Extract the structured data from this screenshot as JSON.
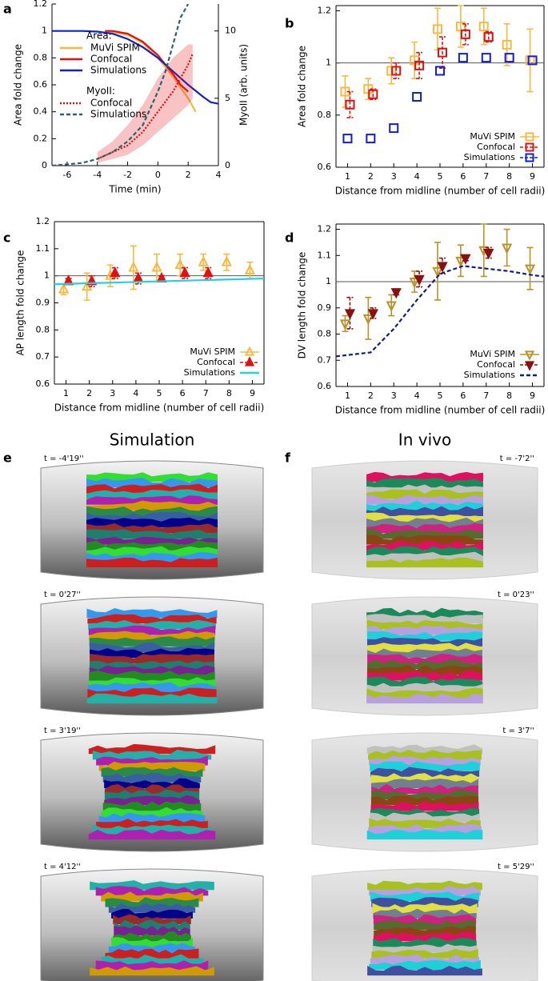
{
  "chart_data": [
    {
      "type": "line",
      "panel": "a",
      "xlabel": "Time (min)",
      "ylabel": "Area fold change",
      "y2label": "MyoII (arb. units)",
      "xlim": [
        -7,
        4
      ],
      "xticks": [
        -6,
        -4,
        -2,
        0,
        2,
        4
      ],
      "ylim": [
        0,
        1.2
      ],
      "yticks": [
        0,
        0.2,
        0.4,
        0.6,
        0.8,
        1,
        1.2
      ],
      "y2lim": [
        0,
        12
      ],
      "y2ticks": [
        0,
        5,
        10
      ],
      "legend": "top-left",
      "legend_groups": [
        "Area:",
        "MyoII:"
      ],
      "series": [
        {
          "name": "MuVi SPIM",
          "group": 0,
          "color": "#f5b942",
          "dash": "solid",
          "x": [
            -3.5,
            -3,
            -2,
            -1,
            0,
            1,
            2,
            2.5
          ],
          "values": [
            0.99,
            0.99,
            0.97,
            0.91,
            0.8,
            0.66,
            0.5,
            0.4
          ]
        },
        {
          "name": "Confocal",
          "group": 0,
          "color": "#e01010",
          "dash": "solid",
          "x": [
            -3.5,
            -3,
            -2,
            -1,
            0,
            1,
            1.5,
            2
          ],
          "values": [
            1,
            1,
            0.98,
            0.92,
            0.82,
            0.68,
            0.6,
            0.55
          ]
        },
        {
          "name": "Simulations",
          "group": 0,
          "color": "#1020d0",
          "dash": "solid",
          "x": [
            -7,
            -5,
            -4,
            -3,
            -2,
            -1,
            0,
            1,
            2,
            3,
            3.5,
            4
          ],
          "values": [
            1,
            1,
            0.995,
            0.98,
            0.94,
            0.88,
            0.8,
            0.7,
            0.6,
            0.51,
            0.47,
            0.46
          ]
        },
        {
          "name": "Confocal",
          "group": 1,
          "color": "#e01010",
          "dash": "dotted",
          "axis": "y2",
          "x": [
            -4,
            -3,
            -2,
            -1,
            0,
            1,
            2,
            2.3
          ],
          "values": [
            0.5,
            1,
            1.5,
            2.5,
            4,
            5.5,
            7.5,
            8.3
          ],
          "lower": [
            0.2,
            0.5,
            0.8,
            1.5,
            2.5,
            3.5,
            4.5,
            5
          ],
          "upper": [
            1,
            1.8,
            3,
            4.5,
            6.5,
            8,
            9,
            9
          ]
        },
        {
          "name": "Simulations",
          "group": 1,
          "color": "#2f5f6f",
          "dash": "dashed",
          "axis": "y2",
          "x": [
            -7,
            -5,
            -4,
            -3,
            -2,
            -1,
            0,
            0.5,
            1,
            1.5,
            2
          ],
          "values": [
            0,
            0.2,
            0.5,
            1,
            1.8,
            3,
            5.5,
            7,
            9,
            11,
            12
          ]
        }
      ]
    },
    {
      "type": "errorbar",
      "panel": "b",
      "xlabel": "Distance from midline (number of cell radii)",
      "ylabel": "Area fold change",
      "xlim": [
        0.5,
        9.5
      ],
      "xticks": [
        1,
        2,
        3,
        4,
        5,
        6,
        7,
        8,
        9
      ],
      "ylim": [
        0.6,
        1.22
      ],
      "yticks": [
        0.6,
        0.8,
        1,
        1.2
      ],
      "hline": 1,
      "legend": "bottom-right",
      "x": [
        1,
        2,
        3,
        4,
        5,
        6,
        7,
        8,
        9
      ],
      "series": [
        {
          "name": "MuVi SPIM",
          "color": "#f5b942",
          "marker": "square",
          "values": [
            0.89,
            0.9,
            0.97,
            1.01,
            1.13,
            1.14,
            1.14,
            1.07,
            1.01
          ],
          "errors": [
            0.06,
            0.04,
            0.05,
            0.07,
            0.08,
            0.08,
            0.07,
            0.08,
            0.12
          ]
        },
        {
          "name": "Confocal",
          "color": "#e01010",
          "marker": "square",
          "values": [
            0.84,
            0.88,
            0.97,
            0.99,
            1.04,
            1.11,
            1.1,
            null,
            null
          ],
          "errors": [
            0.05,
            0.02,
            0.03,
            0.05,
            0.06,
            0.04,
            0.02,
            null,
            null
          ]
        },
        {
          "name": "Simulations",
          "color": "#1020d0",
          "marker": "square",
          "values": [
            0.71,
            0.71,
            0.75,
            0.87,
            0.97,
            1.02,
            1.02,
            1.02,
            1.01
          ]
        }
      ]
    },
    {
      "type": "errorbar",
      "panel": "c",
      "xlabel": "Distance from midline (number of cell radii)",
      "ylabel": "AP length fold change",
      "xlim": [
        0.5,
        9.5
      ],
      "xticks": [
        1,
        2,
        3,
        4,
        5,
        6,
        7,
        8,
        9
      ],
      "ylim": [
        0.6,
        1.2
      ],
      "yticks": [
        0.6,
        0.7,
        0.8,
        0.9,
        1,
        1.1,
        1.2
      ],
      "hline": 1,
      "legend": "bottom-right",
      "x": [
        1,
        2,
        3,
        4,
        5,
        6,
        7,
        8,
        9
      ],
      "series": [
        {
          "name": "MuVi SPIM",
          "color": "#f5b942",
          "marker": "triangle-up",
          "values": [
            0.95,
            0.96,
            1.0,
            1.03,
            1.03,
            1.04,
            1.05,
            1.05,
            1.02
          ],
          "errors": [
            0.02,
            0.05,
            0.04,
            0.08,
            0.05,
            0.04,
            0.03,
            0.03,
            0.03
          ]
        },
        {
          "name": "Confocal",
          "color": "#e01010",
          "marker": "triangle-up",
          "values": [
            0.98,
            0.98,
            1.01,
            0.99,
            0.99,
            1.01,
            1.01,
            null,
            null
          ],
          "errors": [
            0.01,
            0.02,
            0.02,
            0.02,
            0.01,
            0.02,
            0.02,
            null,
            null
          ]
        },
        {
          "name": "Simulations",
          "color": "#22d0e0",
          "dash": "solid",
          "x": [
            0.5,
            9.5
          ],
          "values": [
            0.969,
            0.99
          ]
        }
      ]
    },
    {
      "type": "errorbar",
      "panel": "d",
      "xlabel": "Distance from midline (number of cell radii)",
      "ylabel": "DV length fold change",
      "xlim": [
        0.5,
        9.5
      ],
      "xticks": [
        1,
        2,
        3,
        4,
        5,
        6,
        7,
        8,
        9
      ],
      "ylim": [
        0.6,
        1.22
      ],
      "yticks": [
        0.6,
        0.7,
        0.8,
        0.9,
        1,
        1.1,
        1.2
      ],
      "hline": 1,
      "legend": "bottom-right",
      "x": [
        1,
        2,
        3,
        4,
        5,
        6,
        7,
        8,
        9
      ],
      "series": [
        {
          "name": "MuVi SPIM",
          "color": "#b8922a",
          "marker": "triangle-down",
          "values": [
            0.84,
            0.86,
            0.91,
            1.0,
            1.04,
            1.08,
            1.12,
            1.13,
            1.05
          ],
          "errors": [
            0.03,
            0.08,
            0.04,
            0.04,
            0.11,
            0.06,
            0.1,
            0.07,
            0.08
          ]
        },
        {
          "name": "Confocal",
          "color": "#8b1010",
          "marker": "triangle-down",
          "values": [
            0.88,
            0.88,
            0.96,
            1.01,
            1.06,
            1.09,
            1.11,
            null,
            null
          ],
          "errors": [
            0.06,
            0.02,
            0.01,
            0.03,
            0.03,
            0.01,
            0.02,
            null,
            null
          ]
        },
        {
          "name": "Simulations",
          "color": "#10207a",
          "dash": "dashed",
          "x": [
            0.5,
            1,
            2,
            3,
            4,
            5,
            6,
            7,
            8,
            9,
            9.5
          ],
          "values": [
            0.715,
            0.72,
            0.73,
            0.82,
            0.93,
            1.03,
            1.06,
            1.05,
            1.04,
            1.025,
            1.02
          ]
        }
      ]
    }
  ],
  "panels": [
    {
      "label": "e",
      "title": "Simulation",
      "times": [
        "t = -4'19''",
        "t = 0'27''",
        "t = 3'19''",
        "t = 4'12''"
      ]
    },
    {
      "label": "f",
      "title": "In vivo",
      "times": [
        "t = -7'2''",
        "t = 0'23''",
        "t = 3'7''",
        "t = 5'29''"
      ]
    }
  ]
}
